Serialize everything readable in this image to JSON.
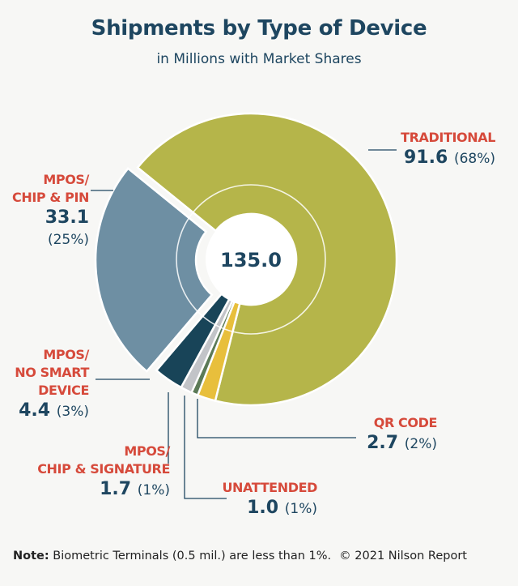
{
  "chart_data": {
    "type": "pie",
    "title": "Shipments by Type of Device",
    "subtitle": "in Millions with Market Shares",
    "total_label": "135.0",
    "slices": [
      {
        "key": "traditional",
        "name_lines": [
          "TRADITIONAL"
        ],
        "value": 91.6,
        "value_label": "91.6",
        "share": "(68%)",
        "color": "#b5b54a"
      },
      {
        "key": "qr-code",
        "name_lines": [
          "QR CODE"
        ],
        "value": 2.7,
        "value_label": "2.7",
        "share": "(2%)",
        "color": "#e8bf3c"
      },
      {
        "key": "unattended",
        "name_lines": [
          "UNATTENDED"
        ],
        "value": 1.0,
        "value_label": "1.0",
        "share": "(1%)",
        "color": "#5b7a57"
      },
      {
        "key": "mpos-chip-signature",
        "name_lines": [
          "MPOS/",
          "CHIP & SIGNATURE"
        ],
        "value": 1.7,
        "value_label": "1.7",
        "share": "(1%)",
        "color": "#c2c4c8"
      },
      {
        "key": "mpos-no-smart-device",
        "name_lines": [
          "MPOS/",
          "NO SMART",
          "DEVICE"
        ],
        "value": 4.4,
        "value_label": "4.4",
        "share": "(3%)",
        "color": "#184458"
      },
      {
        "key": "mpos-chip-pin",
        "name_lines": [
          "MPOS/",
          "CHIP & PIN"
        ],
        "value": 33.1,
        "value_label": "33.1",
        "share": "(25%)",
        "color": "#6e8fa3"
      }
    ]
  },
  "footer": {
    "note_label": "Note:",
    "note_text": " Biometric Terminals (0.5 mil.) are less than 1%.",
    "copyright": "© 2021 Nilson Report"
  },
  "colors": {
    "title": "#1e4660",
    "label_name": "#d64a3b",
    "label_value": "#1e4660",
    "leader": "#1e4660"
  }
}
